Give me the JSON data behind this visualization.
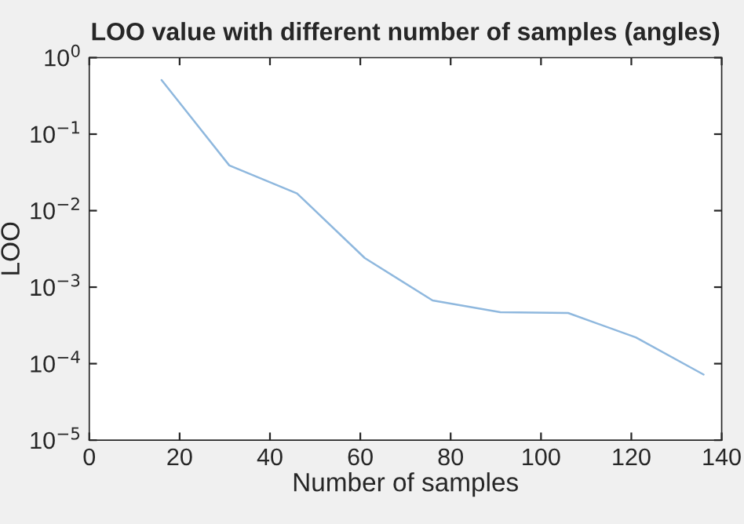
{
  "chart_data": {
    "type": "line",
    "title": "LOO value with different number of samples (angles)",
    "xlabel": "Number of samples",
    "ylabel": "LOO",
    "log": "y",
    "x": [
      16,
      31,
      46,
      61,
      76,
      91,
      106,
      121,
      136
    ],
    "series": [
      {
        "color": "#8fb8de",
        "values": [
          0.51,
          0.039,
          0.0168,
          0.0024,
          0.00067,
          0.00047,
          0.00046,
          0.00022,
          7.2e-05
        ]
      }
    ],
    "xlim": [
      0,
      140
    ],
    "xticks": [
      0,
      20,
      40,
      60,
      80,
      100,
      120,
      140
    ],
    "ylim": [
      1e-05,
      1
    ],
    "yticks": [
      {
        "value": 1e-05,
        "label": "10$^{−5}$"
      },
      {
        "value": 0.0001,
        "label": "10$^{−4}$"
      },
      {
        "value": 0.001,
        "label": "10$^{−3}$"
      },
      {
        "value": 0.01,
        "label": "10$^{−2}$"
      },
      {
        "value": 0.1,
        "label": "10$^{−1}$"
      },
      {
        "value": 1,
        "label": "10$^{0}$"
      }
    ],
    "grid": false,
    "marker": "none",
    "line_style": "solid"
  }
}
